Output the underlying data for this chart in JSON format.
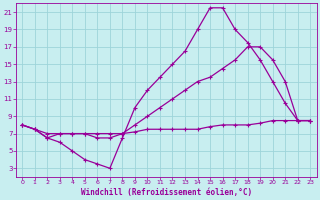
{
  "xlabel": "Windchill (Refroidissement éolien,°C)",
  "bg_color": "#c8eef0",
  "line_color": "#990099",
  "grid_color": "#9dd4da",
  "xlim": [
    -0.5,
    23.5
  ],
  "ylim": [
    2,
    22
  ],
  "xticks": [
    0,
    1,
    2,
    3,
    4,
    5,
    6,
    7,
    8,
    9,
    10,
    11,
    12,
    13,
    14,
    15,
    16,
    17,
    18,
    19,
    20,
    21,
    22,
    23
  ],
  "yticks": [
    3,
    5,
    7,
    9,
    11,
    13,
    15,
    17,
    19,
    21
  ],
  "line1_x": [
    0,
    1,
    2,
    3,
    4,
    5,
    6,
    7,
    8,
    9,
    10,
    11,
    12,
    13,
    14,
    15,
    16,
    17,
    18,
    19,
    20,
    21,
    22,
    23
  ],
  "line1_y": [
    8,
    7.5,
    6.5,
    6,
    5,
    4,
    3.5,
    3,
    6.5,
    10,
    12,
    13.5,
    15,
    16.5,
    19,
    21.5,
    21.5,
    19,
    17.5,
    15.5,
    13,
    10.5,
    8.5,
    8.5
  ],
  "line2_x": [
    0,
    1,
    2,
    3,
    4,
    5,
    6,
    7,
    8,
    9,
    10,
    11,
    12,
    13,
    14,
    15,
    16,
    17,
    18,
    19,
    20,
    21,
    22,
    23
  ],
  "line2_y": [
    8,
    7.5,
    6.5,
    7,
    7,
    7,
    6.5,
    6.5,
    7,
    8,
    9,
    10,
    11,
    12,
    13,
    13.5,
    14.5,
    15.5,
    17,
    17,
    15.5,
    13,
    8.5,
    8.5
  ],
  "line3_x": [
    0,
    1,
    2,
    3,
    4,
    5,
    6,
    7,
    8,
    9,
    10,
    11,
    12,
    13,
    14,
    15,
    16,
    17,
    18,
    19,
    20,
    21,
    22,
    23
  ],
  "line3_y": [
    8,
    7.5,
    7,
    7,
    7,
    7,
    7,
    7,
    7,
    7.2,
    7.5,
    7.5,
    7.5,
    7.5,
    7.5,
    7.8,
    8,
    8,
    8,
    8.2,
    8.5,
    8.5,
    8.5,
    8.5
  ]
}
